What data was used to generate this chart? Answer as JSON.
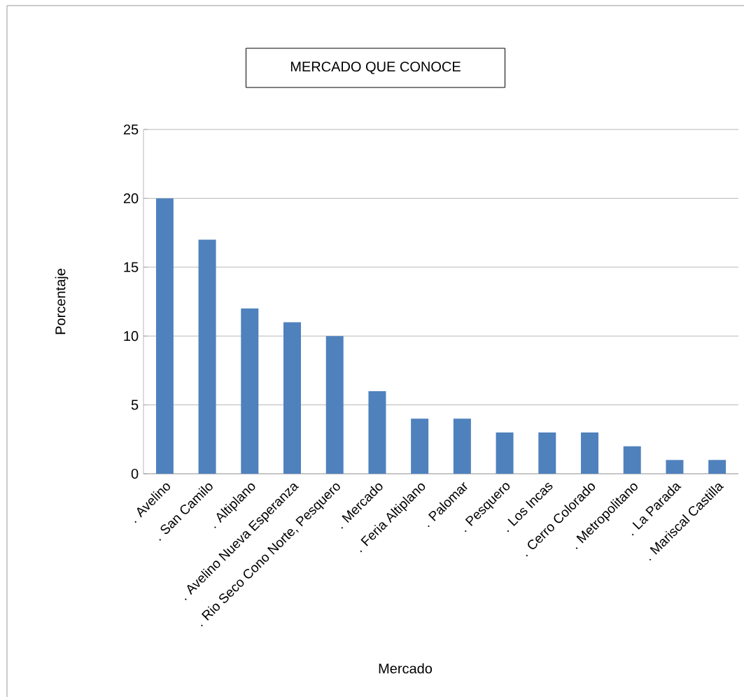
{
  "chart_data": {
    "type": "bar",
    "title": "MERCADO QUE CONOCE",
    "xlabel": "Mercado",
    "ylabel": "Porcentaje",
    "categories": [
      ". Avelino",
      ". San Camilo",
      ". Altiplano",
      ". Avelino Nueva Esperanza",
      ". Rio Seco Cono Norte, Pesquero",
      ". Mercado",
      ". Feria Altiplano",
      ". Palomar",
      ". Pesquero",
      ". Los Incas",
      ". Cerro Colorado",
      ". Metropolitano",
      ". La Parada",
      ". Mariscal Castilla"
    ],
    "values": [
      20,
      17,
      12,
      11,
      10,
      6,
      4,
      4,
      3,
      3,
      3,
      2,
      1,
      1
    ],
    "color": "#4f81bd",
    "ylim": [
      0,
      25
    ],
    "yticks": [
      0,
      5,
      10,
      15,
      20,
      25
    ],
    "grid": "y"
  }
}
